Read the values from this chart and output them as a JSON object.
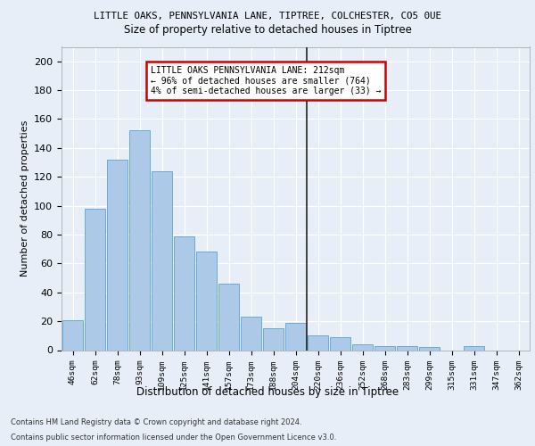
{
  "title1": "LITTLE OAKS, PENNSYLVANIA LANE, TIPTREE, COLCHESTER, CO5 0UE",
  "title2": "Size of property relative to detached houses in Tiptree",
  "xlabel": "Distribution of detached houses by size in Tiptree",
  "ylabel": "Number of detached properties",
  "categories": [
    "46sqm",
    "62sqm",
    "78sqm",
    "93sqm",
    "109sqm",
    "125sqm",
    "141sqm",
    "157sqm",
    "173sqm",
    "188sqm",
    "204sqm",
    "220sqm",
    "236sqm",
    "252sqm",
    "268sqm",
    "283sqm",
    "299sqm",
    "315sqm",
    "331sqm",
    "347sqm",
    "362sqm"
  ],
  "values": [
    21,
    98,
    132,
    152,
    124,
    79,
    68,
    46,
    23,
    15,
    19,
    10,
    9,
    4,
    3,
    3,
    2,
    0,
    3,
    0,
    0
  ],
  "bar_color": "#adc9e8",
  "bar_edge_color": "#6aaad4",
  "annotation_line_label": "LITTLE OAKS PENNSYLVANIA LANE: 212sqm",
  "annotation_smaller": "← 96% of detached houses are smaller (764)",
  "annotation_larger": "4% of semi-detached houses are larger (33) →",
  "annotation_box_color": "#ffffff",
  "annotation_box_edge_color": "#cc0000",
  "vline_color": "#222222",
  "ylim": [
    0,
    210
  ],
  "yticks": [
    0,
    20,
    40,
    60,
    80,
    100,
    120,
    140,
    160,
    180,
    200
  ],
  "footer1": "Contains HM Land Registry data © Crown copyright and database right 2024.",
  "footer2": "Contains public sector information licensed under the Open Government Licence v3.0.",
  "background_color": "#e8eef8",
  "grid_color": "#ffffff"
}
